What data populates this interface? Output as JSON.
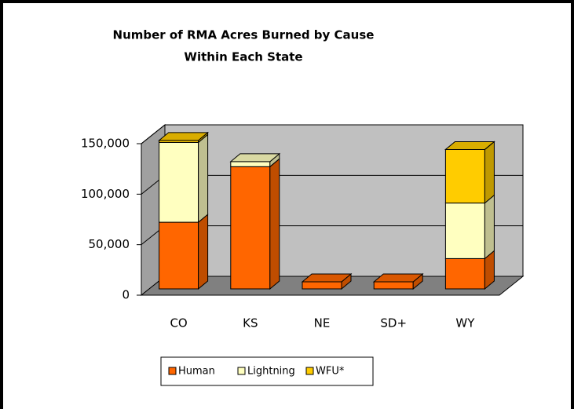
{
  "chart_data": {
    "type": "bar3d_stacked",
    "title": "Number of RMA Acres Burned by Cause",
    "subtitle": "Within Each State",
    "categories": [
      "CO",
      "KS",
      "NE",
      "SD+",
      "WY"
    ],
    "series": [
      {
        "name": "Human",
        "color": "#ff6600",
        "values": [
          66000,
          121000,
          7000,
          7000,
          30000
        ]
      },
      {
        "name": "Lightning",
        "color": "#ffffc0",
        "values": [
          79000,
          5000,
          0,
          0,
          55000
        ]
      },
      {
        "name": "WFU*",
        "color": "#ffcc00",
        "values": [
          2000,
          0,
          0,
          0,
          53000
        ]
      }
    ],
    "ylim": [
      0,
      150000
    ],
    "yticks": [
      0,
      {
        "value": 50000,
        "label": "50,000"
      },
      {
        "value": 100000,
        "label": "100,000"
      },
      {
        "value": 150000,
        "label": "150,000"
      }
    ],
    "grid": true,
    "legend": "bottom"
  }
}
